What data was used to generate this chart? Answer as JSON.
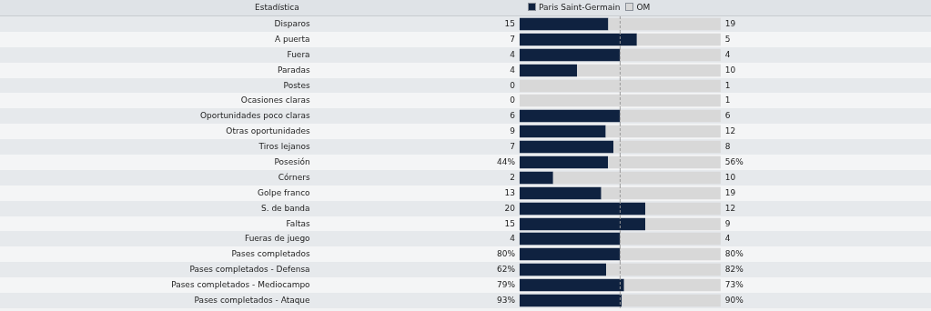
{
  "chart_data": [
    {
      "type": "bar",
      "orientation": "horizontal",
      "stacked": true,
      "tick_labels": "y",
      "ylabel": "Estadística",
      "legend": "top",
      "categories": [
        "Disparos"
      ],
      "xlim": [
        0,
        34
      ],
      "series": [
        {
          "name": "Paris Saint-Germain",
          "color": "#0f2240",
          "values": [
            15
          ],
          "value_labels": [
            "15"
          ]
        },
        {
          "name": "OM",
          "color": "#d8d8d8",
          "values": [
            19
          ],
          "value_labels": [
            "19"
          ]
        }
      ],
      "ref_lines": [
        {
          "axis": "x",
          "value": 17,
          "color": "#999999",
          "line_style": "dashed"
        }
      ]
    },
    {
      "type": "bar",
      "orientation": "horizontal",
      "stacked": true,
      "tick_labels": "y",
      "categories": [
        "A puerta"
      ],
      "xlim": [
        0,
        12
      ],
      "series": [
        {
          "color": "#0f2240",
          "values": [
            7
          ],
          "value_labels": [
            "7"
          ]
        },
        {
          "color": "#d8d8d8",
          "values": [
            5
          ],
          "value_labels": [
            "5"
          ]
        }
      ],
      "ref_lines": [
        {
          "axis": "x",
          "value": 6,
          "color": "#999999",
          "line_style": "dashed"
        }
      ]
    },
    {
      "type": "bar",
      "orientation": "horizontal",
      "stacked": true,
      "tick_labels": "y",
      "categories": [
        "Fuera"
      ],
      "xlim": [
        0,
        8
      ],
      "series": [
        {
          "color": "#0f2240",
          "values": [
            4
          ],
          "value_labels": [
            "4"
          ]
        },
        {
          "color": "#d8d8d8",
          "values": [
            4
          ],
          "value_labels": [
            "4"
          ]
        }
      ],
      "ref_lines": [
        {
          "axis": "x",
          "value": 4,
          "color": "#999999",
          "line_style": "dashed"
        }
      ]
    },
    {
      "type": "bar",
      "orientation": "horizontal",
      "stacked": true,
      "tick_labels": "y",
      "categories": [
        "Paradas"
      ],
      "xlim": [
        0,
        14
      ],
      "series": [
        {
          "color": "#0f2240",
          "values": [
            4
          ],
          "value_labels": [
            "4"
          ]
        },
        {
          "color": "#d8d8d8",
          "values": [
            10
          ],
          "value_labels": [
            "10"
          ]
        }
      ],
      "ref_lines": [
        {
          "axis": "x",
          "value": 7,
          "color": "#999999",
          "line_style": "dashed"
        }
      ]
    },
    {
      "type": "bar",
      "orientation": "horizontal",
      "stacked": true,
      "tick_labels": "y",
      "categories": [
        "Postes"
      ],
      "series": [
        {
          "color": "#0f2240",
          "values": [
            0
          ],
          "value_labels": [
            "0"
          ]
        },
        {
          "color": "#d8d8d8",
          "values": [
            1
          ],
          "value_labels": [
            "1"
          ]
        }
      ],
      "ref_lines": [
        {
          "axis": "x",
          "value": 0.5,
          "color": "#999999",
          "line_style": "dashed"
        }
      ]
    },
    {
      "type": "bar",
      "orientation": "horizontal",
      "stacked": true,
      "tick_labels": "y",
      "categories": [
        "Ocasiones claras"
      ],
      "series": [
        {
          "color": "#0f2240",
          "values": [
            0
          ],
          "value_labels": [
            "0"
          ]
        },
        {
          "color": "#d8d8d8",
          "values": [
            1
          ],
          "value_labels": [
            "1"
          ]
        }
      ],
      "ref_lines": [
        {
          "axis": "x",
          "value": 0.5,
          "color": "#999999",
          "line_style": "dashed"
        }
      ]
    },
    {
      "type": "bar",
      "orientation": "horizontal",
      "stacked": true,
      "tick_labels": "y",
      "categories": [
        "Oportunidades poco claras"
      ],
      "xlim": [
        0,
        12
      ],
      "series": [
        {
          "color": "#0f2240",
          "values": [
            6
          ],
          "value_labels": [
            "6"
          ]
        },
        {
          "color": "#d8d8d8",
          "values": [
            6
          ],
          "value_labels": [
            "6"
          ]
        }
      ],
      "ref_lines": [
        {
          "axis": "x",
          "value": 6,
          "color": "#999999",
          "line_style": "dashed"
        }
      ]
    },
    {
      "type": "bar",
      "orientation": "horizontal",
      "stacked": true,
      "tick_labels": "y",
      "categories": [
        "Otras oportunidades"
      ],
      "xlim": [
        0,
        21
      ],
      "series": [
        {
          "color": "#0f2240",
          "values": [
            9
          ],
          "value_labels": [
            "9"
          ]
        },
        {
          "color": "#d8d8d8",
          "values": [
            12
          ],
          "value_labels": [
            "12"
          ]
        }
      ],
      "ref_lines": [
        {
          "axis": "x",
          "value": 10.5,
          "color": "#999999",
          "line_style": "dashed"
        }
      ]
    },
    {
      "type": "bar",
      "orientation": "horizontal",
      "stacked": true,
      "tick_labels": "y",
      "categories": [
        "Tiros lejanos"
      ],
      "xlim": [
        0,
        15
      ],
      "series": [
        {
          "color": "#0f2240",
          "values": [
            7
          ],
          "value_labels": [
            "7"
          ]
        },
        {
          "color": "#d8d8d8",
          "values": [
            8
          ],
          "value_labels": [
            "8"
          ]
        }
      ],
      "ref_lines": [
        {
          "axis": "x",
          "value": 7.5,
          "color": "#999999",
          "line_style": "dashed"
        }
      ]
    },
    {
      "type": "bar",
      "orientation": "horizontal",
      "stacked": true,
      "tick_labels": "y",
      "categories": [
        "Posesión"
      ],
      "xlim": [
        0,
        100
      ],
      "series": [
        {
          "color": "#0f2240",
          "values": [
            44
          ],
          "value_labels": [
            "44%"
          ]
        },
        {
          "color": "#d8d8d8",
          "values": [
            56
          ],
          "value_labels": [
            "56%"
          ]
        }
      ],
      "ref_lines": [
        {
          "axis": "x",
          "value": 50,
          "color": "#999999",
          "line_style": "dashed"
        }
      ]
    },
    {
      "type": "bar",
      "orientation": "horizontal",
      "stacked": true,
      "tick_labels": "y",
      "categories": [
        "Córners"
      ],
      "xlim": [
        0,
        12
      ],
      "series": [
        {
          "color": "#0f2240",
          "values": [
            2
          ],
          "value_labels": [
            "2"
          ]
        },
        {
          "color": "#d8d8d8",
          "values": [
            10
          ],
          "value_labels": [
            "10"
          ]
        }
      ],
      "ref_lines": [
        {
          "axis": "x",
          "value": 6,
          "color": "#999999",
          "line_style": "dashed"
        }
      ]
    },
    {
      "type": "bar",
      "orientation": "horizontal",
      "stacked": true,
      "tick_labels": "y",
      "categories": [
        "Golpe franco"
      ],
      "xlim": [
        0,
        32
      ],
      "series": [
        {
          "color": "#0f2240",
          "values": [
            13
          ],
          "value_labels": [
            "13"
          ]
        },
        {
          "color": "#d8d8d8",
          "values": [
            19
          ],
          "value_labels": [
            "19"
          ]
        }
      ],
      "ref_lines": [
        {
          "axis": "x",
          "value": 16,
          "color": "#999999",
          "line_style": "dashed"
        }
      ]
    },
    {
      "type": "bar",
      "orientation": "horizontal",
      "stacked": true,
      "tick_labels": "y",
      "categories": [
        "S. de banda"
      ],
      "xlim": [
        0,
        32
      ],
      "series": [
        {
          "color": "#0f2240",
          "values": [
            20
          ],
          "value_labels": [
            "20"
          ]
        },
        {
          "color": "#d8d8d8",
          "values": [
            12
          ],
          "value_labels": [
            "12"
          ]
        }
      ],
      "ref_lines": [
        {
          "axis": "x",
          "value": 16,
          "color": "#999999",
          "line_style": "dashed"
        }
      ]
    },
    {
      "type": "bar",
      "orientation": "horizontal",
      "stacked": true,
      "tick_labels": "y",
      "categories": [
        "Faltas"
      ],
      "xlim": [
        0,
        24
      ],
      "series": [
        {
          "color": "#0f2240",
          "values": [
            15
          ],
          "value_labels": [
            "15"
          ]
        },
        {
          "color": "#d8d8d8",
          "values": [
            9
          ],
          "value_labels": [
            "9"
          ]
        }
      ],
      "ref_lines": [
        {
          "axis": "x",
          "value": 12,
          "color": "#999999",
          "line_style": "dashed"
        }
      ]
    },
    {
      "type": "bar",
      "orientation": "horizontal",
      "stacked": true,
      "tick_labels": "y",
      "categories": [
        "Fueras de juego"
      ],
      "xlim": [
        0,
        8
      ],
      "series": [
        {
          "color": "#0f2240",
          "values": [
            4
          ],
          "value_labels": [
            "4"
          ]
        },
        {
          "color": "#d8d8d8",
          "values": [
            4
          ],
          "value_labels": [
            "4"
          ]
        }
      ],
      "ref_lines": [
        {
          "axis": "x",
          "value": 4,
          "color": "#999999",
          "line_style": "dashed"
        }
      ]
    },
    {
      "type": "bar",
      "orientation": "horizontal",
      "stacked": true,
      "tick_labels": "y",
      "categories": [
        "Pases completados"
      ],
      "xlim": [
        0,
        160
      ],
      "series": [
        {
          "color": "#0f2240",
          "values": [
            80
          ],
          "value_labels": [
            "80%"
          ]
        },
        {
          "color": "#d8d8d8",
          "values": [
            80
          ],
          "value_labels": [
            "80%"
          ]
        }
      ],
      "ref_lines": [
        {
          "axis": "x",
          "value": 80,
          "color": "#999999",
          "line_style": "dashed"
        }
      ]
    },
    {
      "type": "bar",
      "orientation": "horizontal",
      "stacked": true,
      "tick_labels": "y",
      "categories": [
        "Pases completados - Defensa"
      ],
      "xlim": [
        0,
        144
      ],
      "series": [
        {
          "color": "#0f2240",
          "values": [
            62
          ],
          "value_labels": [
            "62%"
          ]
        },
        {
          "color": "#d8d8d8",
          "values": [
            82
          ],
          "value_labels": [
            "82%"
          ]
        }
      ],
      "ref_lines": [
        {
          "axis": "x",
          "value": 72,
          "color": "#999999",
          "line_style": "dashed"
        }
      ]
    },
    {
      "type": "bar",
      "orientation": "horizontal",
      "stacked": true,
      "tick_labels": "y",
      "categories": [
        "Pases completados - Mediocampo"
      ],
      "xlim": [
        0,
        152
      ],
      "series": [
        {
          "color": "#0f2240",
          "values": [
            79
          ],
          "value_labels": [
            "79%"
          ]
        },
        {
          "color": "#d8d8d8",
          "values": [
            73
          ],
          "value_labels": [
            "73%"
          ]
        }
      ],
      "ref_lines": [
        {
          "axis": "x",
          "value": 76,
          "color": "#999999",
          "line_style": "dashed"
        }
      ]
    },
    {
      "type": "bar",
      "orientation": "horizontal",
      "stacked": true,
      "tick_labels": "y",
      "categories": [
        "Pases completados - Ataque"
      ],
      "xlim": [
        0,
        183
      ],
      "series": [
        {
          "color": "#0f2240",
          "values": [
            93
          ],
          "value_labels": [
            "93%"
          ]
        },
        {
          "color": "#d8d8d8",
          "values": [
            90
          ],
          "value_labels": [
            "90%"
          ]
        }
      ],
      "ref_lines": [
        {
          "axis": "x",
          "value": 91.5,
          "color": "#999999",
          "line_style": "dashed"
        }
      ]
    }
  ]
}
